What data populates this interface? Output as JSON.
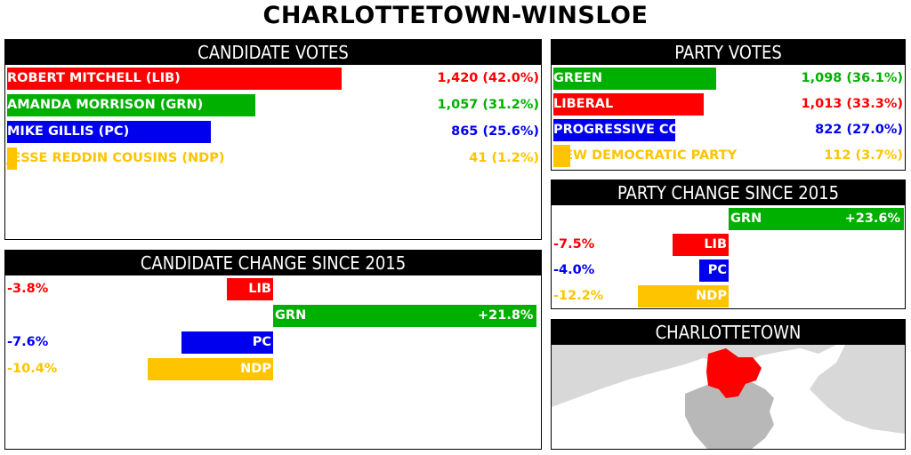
{
  "title": "CHARLOTTETOWN-WINSLOE",
  "panels": {
    "candidate_votes": "CANDIDATE VOTES",
    "party_votes": "PARTY VOTES",
    "candidate_change": "CANDIDATE CHANGE SINCE 2015",
    "party_change": "PARTY CHANGE SINCE 2015",
    "map": "CHARLOTTETOWN"
  },
  "colors": {
    "LIB": "#ff0000",
    "GRN": "#00b000",
    "PC": "#0000ee",
    "NDP": "#ffc400"
  },
  "chart_data": [
    {
      "type": "bar",
      "title": "CANDIDATE VOTES",
      "categories": [
        "ROBERT MITCHELL (LIB)",
        "AMANDA MORRISON (GRN)",
        "MIKE GILLIS (PC)",
        "JESSE REDDIN COUSINS (NDP)"
      ],
      "parties": [
        "LIB",
        "GRN",
        "PC",
        "NDP"
      ],
      "values": [
        1420,
        1057,
        865,
        41
      ],
      "percent": [
        42.0,
        31.2,
        25.6,
        1.2
      ],
      "value_labels": [
        "1,420 (42.0%)",
        "1,057 (31.2%)",
        "865 (25.6%)",
        "41 (1.2%)"
      ]
    },
    {
      "type": "bar",
      "title": "PARTY VOTES",
      "categories": [
        "GREEN",
        "LIBERAL",
        "PROGRESSIVE CONSERVATIVE",
        "NEW DEMOCRATIC PARTY"
      ],
      "parties": [
        "GRN",
        "LIB",
        "PC",
        "NDP"
      ],
      "values": [
        1098,
        1013,
        822,
        112
      ],
      "percent": [
        36.1,
        33.3,
        27.0,
        3.7
      ],
      "value_labels": [
        "1,098 (36.1%)",
        "1,013 (33.3%)",
        "822 (27.0%)",
        "112 (3.7%)"
      ]
    },
    {
      "type": "bar",
      "title": "CANDIDATE CHANGE SINCE 2015",
      "categories": [
        "LIB",
        "GRN",
        "PC",
        "NDP"
      ],
      "values": [
        -3.8,
        21.8,
        -7.6,
        -10.4
      ],
      "value_labels": [
        "-3.8%",
        "+21.8%",
        "-7.6%",
        "-10.4%"
      ]
    },
    {
      "type": "bar",
      "title": "PARTY CHANGE SINCE 2015",
      "categories": [
        "GRN",
        "LIB",
        "PC",
        "NDP"
      ],
      "values": [
        23.6,
        -7.5,
        -4.0,
        -12.2
      ],
      "value_labels": [
        "+23.6%",
        "-7.5%",
        "-4.0%",
        "-12.2%"
      ]
    }
  ]
}
